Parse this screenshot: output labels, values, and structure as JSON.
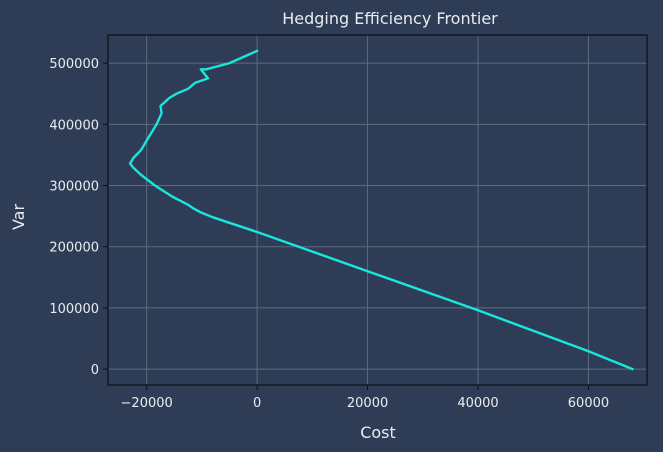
{
  "chart_data": {
    "type": "line",
    "title": "Hedging Efficiency Frontier",
    "xlabel": "Cost",
    "ylabel": "Var",
    "xlim": [
      -27000,
      70600
    ],
    "ylim": [
      -26000,
      546000
    ],
    "xticks": [
      -20000,
      0,
      20000,
      40000,
      60000
    ],
    "yticks": [
      0,
      100000,
      200000,
      300000,
      400000,
      500000
    ],
    "xtick_labels": [
      "−20000",
      "0",
      "20000",
      "40000",
      "60000"
    ],
    "ytick_labels": [
      "0",
      "100000",
      "200000",
      "300000",
      "400000",
      "500000"
    ],
    "grid": true,
    "series": [
      {
        "color": "#19e6dc",
        "x": [
          0,
          -5000,
          -9200,
          -10200,
          -8900,
          -11200,
          -12500,
          -14600,
          -15900,
          -17500,
          -17300,
          -18200,
          -19900,
          -21000,
          -22400,
          -23000,
          -22500,
          -21100,
          -18500,
          -15400,
          -12400,
          -11600,
          -10200,
          -8000,
          0,
          20000,
          40000,
          60000,
          68000
        ],
        "y": [
          520000,
          500000,
          490000,
          490000,
          475000,
          468000,
          458000,
          450000,
          443000,
          430000,
          418000,
          400000,
          375000,
          358000,
          345000,
          336000,
          330000,
          318000,
          300000,
          282000,
          268000,
          263000,
          256000,
          248000,
          224000,
          160000,
          96000,
          29000,
          0
        ]
      }
    ]
  },
  "colors": {
    "background": "#2e3d55",
    "grid": "#5b6b82",
    "spine": "#0c0f14",
    "text": "#e8ecf2"
  }
}
